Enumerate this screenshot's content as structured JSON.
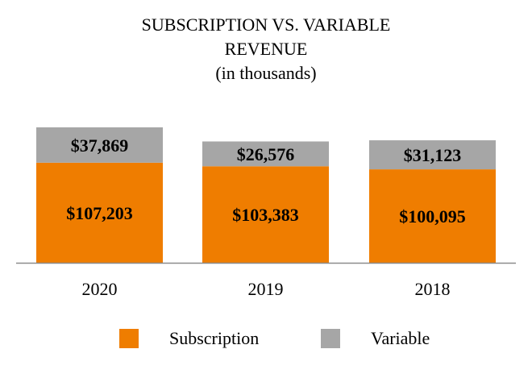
{
  "chart_data": {
    "type": "bar",
    "stacked": true,
    "title": "SUBSCRIPTION VS. VARIABLE",
    "title_line2": "REVENUE",
    "subtitle": "(in thousands)",
    "categories": [
      "2020",
      "2019",
      "2018"
    ],
    "series": [
      {
        "name": "Subscription",
        "color": "#ef7d00",
        "values": [
          107203,
          103383,
          100095
        ],
        "labels": [
          "$107,203",
          "$103,383",
          "$100,095"
        ]
      },
      {
        "name": "Variable",
        "color": "#a6a6a6",
        "values": [
          37869,
          26576,
          31123
        ],
        "labels": [
          "$37,869",
          "$26,576",
          "$31,123"
        ]
      }
    ],
    "ylim": [
      0,
      145072
    ],
    "grid": false,
    "legend_position": "bottom",
    "xlabel": "",
    "ylabel": ""
  }
}
